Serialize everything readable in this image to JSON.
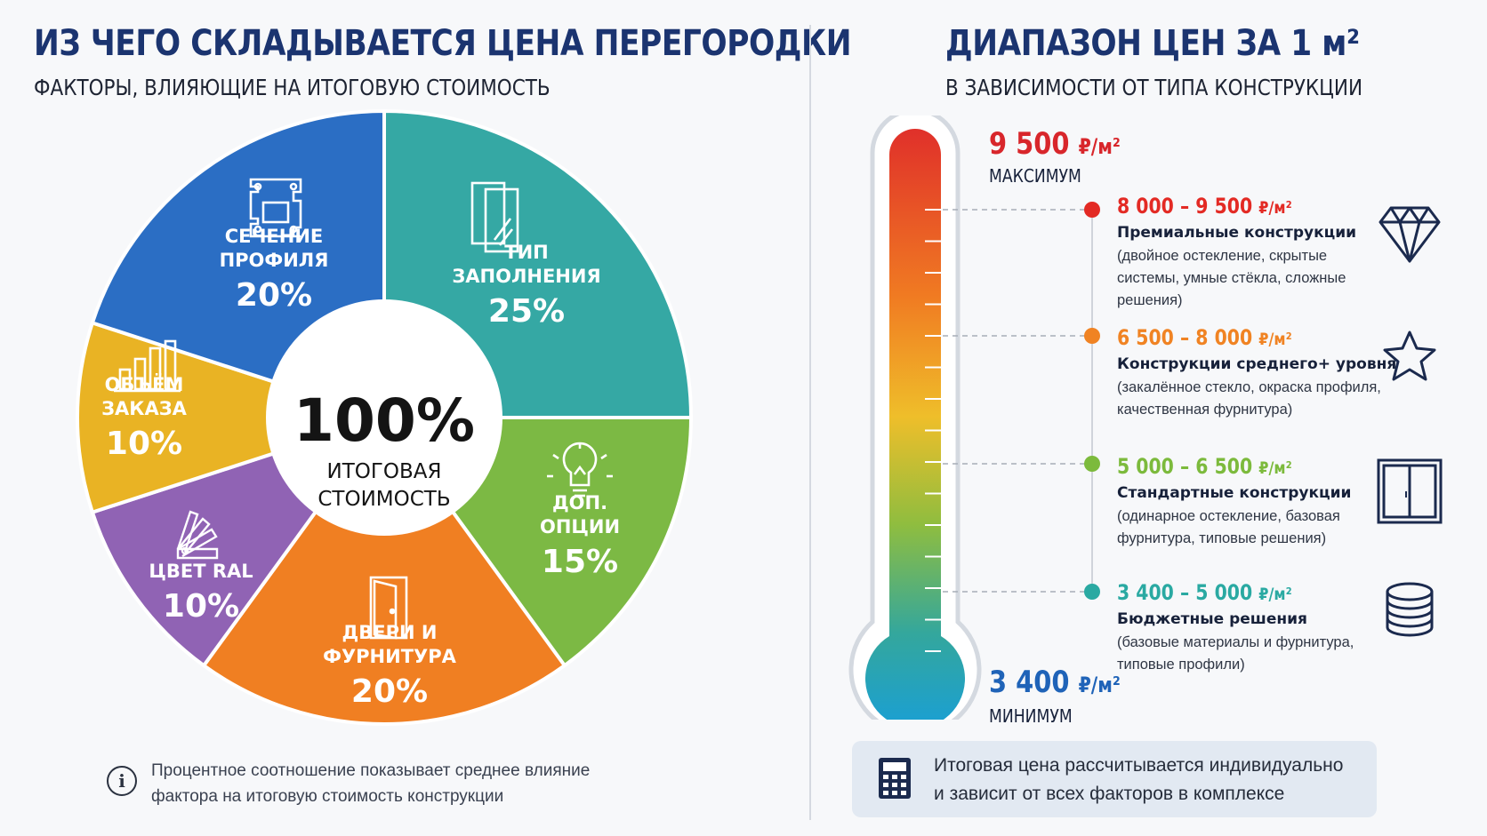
{
  "left": {
    "title": "ИЗ ЧЕГО СКЛАДЫВАЕТСЯ ЦЕНА ПЕРЕГОРОДКИ",
    "subtitle": "ФАКТОРЫ, ВЛИЯЮЩИЕ НА ИТОГОВУЮ СТОИМОСТЬ",
    "footnote": [
      "Процентное соотношение показывает среднее влияние",
      "фактора на итоговую стоимость конструкции"
    ]
  },
  "right": {
    "title": "ДИАПАЗОН ЦЕН ЗА 1 м²",
    "subtitle": "В ЗАВИСИМОСТИ ОТ ТИПА КОНСТРУКЦИИ",
    "summary": [
      "Итоговая цена рассчитывается индивидуально",
      "и зависит от всех факторов в комплексе"
    ]
  },
  "chart_data": [
    {
      "type": "pie",
      "center_value": "100%",
      "center_label": [
        "ИТОГОВАЯ",
        "СТОИМОСТЬ"
      ],
      "slices": [
        {
          "label": [
            "ТИП",
            "ЗАПОЛНЕНИЯ"
          ],
          "value": 25,
          "value_label": "25%",
          "color": "#35a8a4",
          "icon": "glass-panel-icon"
        },
        {
          "label": [
            "ДОП.",
            "ОПЦИИ"
          ],
          "value": 15,
          "value_label": "15%",
          "color": "#7cb944",
          "icon": "light-bulb-icon"
        },
        {
          "label": [
            "ДВЕРИ И",
            "ФУРНИТУРА"
          ],
          "value": 20,
          "value_label": "20%",
          "color": "#f07f22",
          "icon": "door-icon"
        },
        {
          "label": [
            "ЦВЕТ RAL"
          ],
          "value": 10,
          "value_label": "10%",
          "color": "#9063b4",
          "icon": "color-fan-icon"
        },
        {
          "label": [
            "ОБЪЁМ",
            "ЗАКАЗА"
          ],
          "value": 10,
          "value_label": "10%",
          "color": "#e9b324",
          "icon": "bar-chart-icon"
        },
        {
          "label": [
            "СЕЧЕНИЕ",
            "ПРОФИЛЯ"
          ],
          "value": 20,
          "value_label": "20%",
          "color": "#2b6ec4",
          "icon": "profile-section-icon"
        }
      ]
    },
    {
      "type": "gauge",
      "unit": "₽/м²",
      "max": {
        "value": "9 500",
        "unit": "₽/м²",
        "label": "МАКСИМУМ",
        "number": 9500
      },
      "min": {
        "value": "3 400",
        "unit": "₽/м²",
        "label": "МИНИМУМ",
        "number": 3400
      },
      "tiers": [
        {
          "range": "8 000 – 9 500",
          "unit": "₽/м²",
          "from": 8000,
          "to": 9500,
          "name": "Премиальные конструкции",
          "desc": "(двойное остекление, скрытые системы, умные стёкла, сложные решения)",
          "color": "#e32a24",
          "icon": "diamond-icon"
        },
        {
          "range": "6 500 – 8 000",
          "unit": "₽/м²",
          "from": 6500,
          "to": 8000,
          "name": "Конструкции среднего+ уровня",
          "desc": "(закалённое стекло, окраска профиля, качественная фурнитура)",
          "color": "#f08323",
          "icon": "star-icon"
        },
        {
          "range": "5 000 – 6 500",
          "unit": "₽/м²",
          "from": 5000,
          "to": 6500,
          "name": "Стандартные конструкции",
          "desc": "(одинарное остекление, базовая фурнитура, типовые решения)",
          "color": "#7cba3c",
          "icon": "window-icon"
        },
        {
          "range": "3 400 – 5 000",
          "unit": "₽/м²",
          "from": 3400,
          "to": 5000,
          "name": "Бюджетные решения",
          "desc": "(базовые материалы и фурнитура, типовые профили)",
          "color": "#2aa9a2",
          "icon": "coins-icon"
        }
      ]
    }
  ]
}
